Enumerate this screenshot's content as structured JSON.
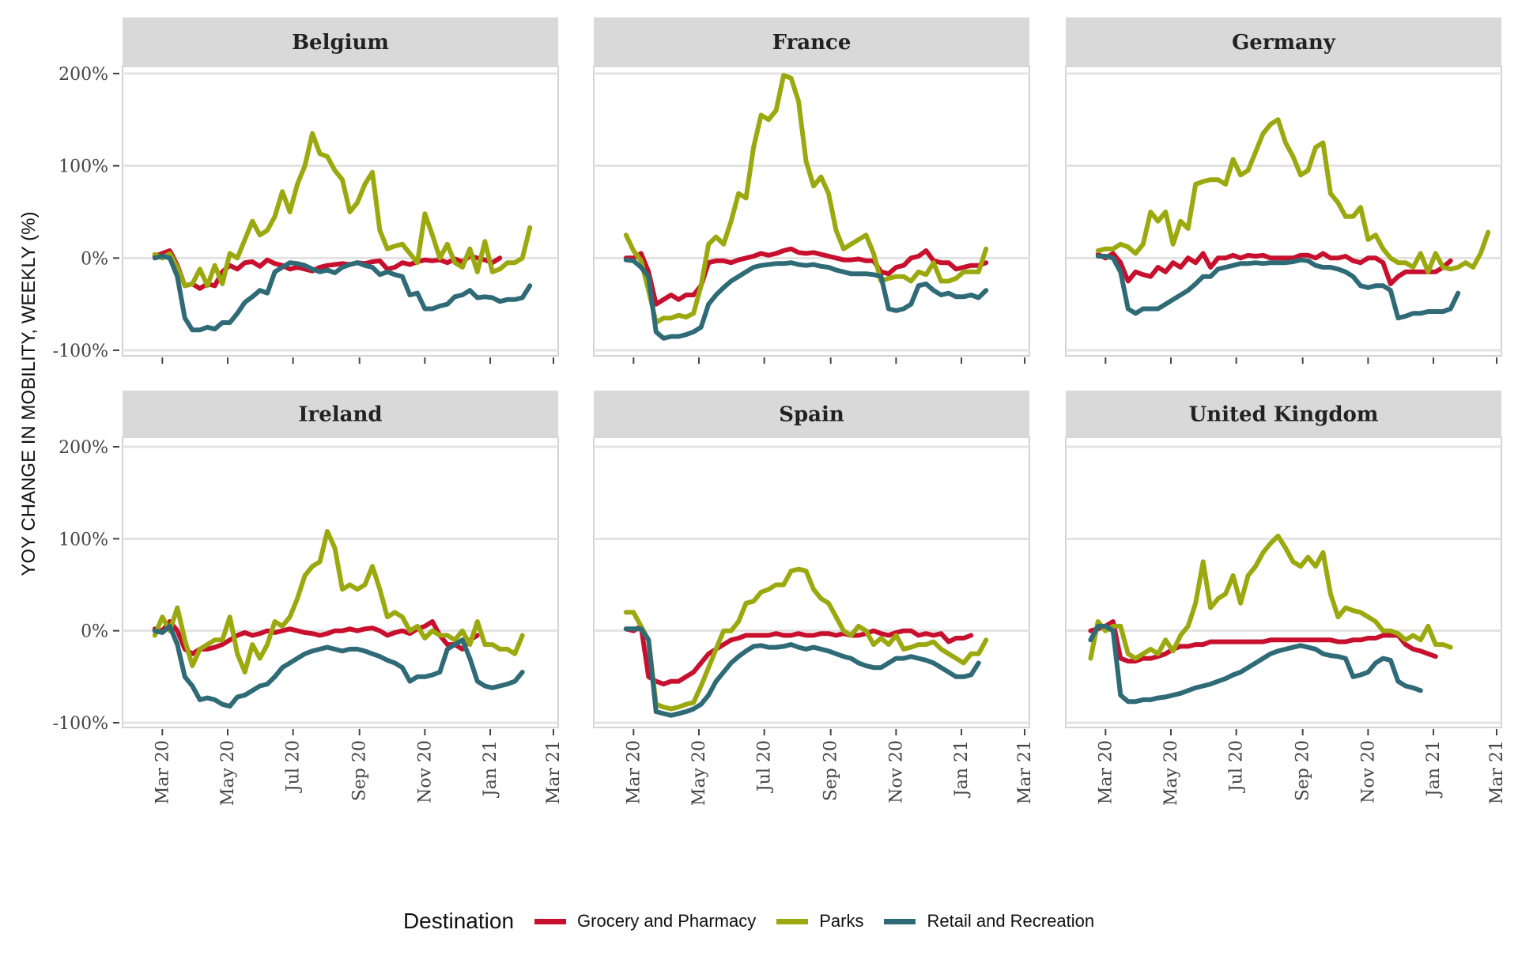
{
  "chart_data": {
    "type": "line",
    "ylabel": "YOY CHANGE IN MOBILITY, WEEKLY (%)",
    "ylim": [
      -100,
      200
    ],
    "yticks": [
      -100,
      0,
      100,
      200
    ],
    "ytick_labels": [
      "-100%",
      "0%",
      "100%",
      "200%"
    ],
    "x_range": [
      "2020-02-15",
      "2021-03-01"
    ],
    "xticks": [
      "2020-03-01",
      "2020-05-01",
      "2020-07-01",
      "2020-09-01",
      "2020-11-01",
      "2021-01-01",
      "2021-03-01"
    ],
    "xtick_labels": [
      "Mar 20",
      "May 20",
      "Jul 20",
      "Sep 20",
      "Nov 20",
      "Jan 21",
      "Mar 21"
    ],
    "grid": true,
    "legend": {
      "title": "Destination",
      "position": "bottom",
      "entries": [
        "Grocery and Pharmacy",
        "Parks",
        "Retail and Recreation"
      ]
    },
    "colors": {
      "Grocery and Pharmacy": "#C8102E",
      "Parks": "#9BA90E",
      "Retail and Recreation": "#2E6B77"
    },
    "series_names": [
      "Grocery and Pharmacy",
      "Parks",
      "Retail and Recreation"
    ],
    "panels": [
      {
        "name": "Belgium",
        "start": "2020-02-23",
        "series": {
          "Grocery and Pharmacy": [
            2,
            5,
            8,
            -8,
            -30,
            -28,
            -33,
            -28,
            -30,
            -15,
            -8,
            -12,
            -5,
            -4,
            -9,
            -2,
            -6,
            -8,
            -12,
            -10,
            -12,
            -14,
            -10,
            -8,
            -7,
            -6,
            -7,
            -5,
            -6,
            -4,
            -3,
            -12,
            -10,
            -5,
            -7,
            -4,
            -2,
            -3,
            -2,
            -5,
            -1,
            -4,
            2,
            0,
            -2,
            -5,
            0
          ],
          "Parks": [
            4,
            0,
            5,
            -10,
            -30,
            -28,
            -12,
            -30,
            -8,
            -28,
            5,
            0,
            20,
            40,
            25,
            30,
            45,
            72,
            50,
            80,
            100,
            135,
            113,
            110,
            95,
            85,
            50,
            60,
            80,
            93,
            30,
            10,
            13,
            15,
            5,
            -5,
            48,
            25,
            0,
            15,
            -5,
            -10,
            10,
            -15,
            18,
            -15,
            -12,
            -5,
            -5,
            0,
            33
          ],
          "Retail and Recreation": [
            0,
            2,
            0,
            -20,
            -65,
            -78,
            -78,
            -75,
            -77,
            -70,
            -70,
            -60,
            -48,
            -42,
            -35,
            -38,
            -15,
            -10,
            -5,
            -6,
            -8,
            -12,
            -15,
            -13,
            -16,
            -10,
            -7,
            -5,
            -8,
            -10,
            -18,
            -15,
            -18,
            -20,
            -40,
            -38,
            -55,
            -55,
            -52,
            -50,
            -42,
            -40,
            -35,
            -43,
            -42,
            -43,
            -47,
            -45,
            -45,
            -43,
            -30
          ]
        }
      },
      {
        "name": "France",
        "start": "2020-02-23",
        "series": {
          "Grocery and Pharmacy": [
            0,
            0,
            5,
            -15,
            -50,
            -45,
            -40,
            -45,
            -40,
            -40,
            -30,
            -5,
            -3,
            -3,
            -5,
            -2,
            0,
            2,
            5,
            3,
            5,
            8,
            10,
            6,
            5,
            6,
            4,
            2,
            0,
            -2,
            -2,
            -1,
            -3,
            -3,
            -15,
            -17,
            -10,
            -8,
            0,
            2,
            8,
            -3,
            -5,
            -5,
            -12,
            -10,
            -8,
            -8,
            -5
          ],
          "Parks": [
            25,
            8,
            -3,
            -35,
            -70,
            -65,
            -65,
            -62,
            -64,
            -60,
            -30,
            15,
            23,
            15,
            40,
            70,
            65,
            120,
            155,
            150,
            160,
            198,
            195,
            170,
            105,
            78,
            88,
            70,
            30,
            10,
            15,
            20,
            25,
            5,
            -25,
            -22,
            -20,
            -20,
            -25,
            -15,
            -18,
            -5,
            -25,
            -25,
            -22,
            -15,
            -15,
            -15,
            10
          ],
          "Retail and Recreation": [
            -2,
            -3,
            -10,
            -20,
            -80,
            -87,
            -85,
            -85,
            -83,
            -80,
            -75,
            -50,
            -40,
            -32,
            -25,
            -20,
            -15,
            -10,
            -8,
            -7,
            -6,
            -6,
            -5,
            -7,
            -8,
            -7,
            -9,
            -10,
            -13,
            -15,
            -17,
            -17,
            -17,
            -18,
            -20,
            -55,
            -57,
            -55,
            -50,
            -30,
            -28,
            -35,
            -40,
            -38,
            -42,
            -42,
            -40,
            -43,
            -35
          ]
        }
      },
      {
        "name": "Germany",
        "start": "2020-02-23",
        "series": {
          "Grocery and Pharmacy": [
            4,
            0,
            5,
            -5,
            -25,
            -15,
            -18,
            -20,
            -10,
            -15,
            -5,
            -10,
            0,
            -5,
            5,
            -10,
            0,
            0,
            3,
            0,
            3,
            2,
            3,
            0,
            0,
            0,
            0,
            3,
            3,
            0,
            5,
            0,
            0,
            2,
            -3,
            -5,
            0,
            0,
            -5,
            -28,
            -20,
            -15,
            -15,
            -15,
            -15,
            -15,
            -10,
            -3
          ],
          "Parks": [
            8,
            10,
            10,
            15,
            12,
            5,
            15,
            50,
            40,
            50,
            15,
            40,
            32,
            80,
            83,
            85,
            85,
            80,
            107,
            90,
            95,
            115,
            135,
            145,
            150,
            125,
            110,
            90,
            95,
            120,
            125,
            70,
            60,
            45,
            45,
            55,
            20,
            25,
            10,
            0,
            -5,
            -5,
            -10,
            5,
            -15,
            5,
            -10,
            -12,
            -10,
            -5,
            -10,
            5,
            28
          ],
          "Retail and Recreation": [
            2,
            2,
            0,
            -15,
            -55,
            -60,
            -55,
            -55,
            -55,
            -50,
            -45,
            -40,
            -35,
            -28,
            -20,
            -20,
            -12,
            -10,
            -8,
            -6,
            -6,
            -5,
            -6,
            -5,
            -5,
            -5,
            -4,
            -2,
            -3,
            -8,
            -10,
            -10,
            -12,
            -15,
            -20,
            -30,
            -32,
            -30,
            -30,
            -35,
            -65,
            -63,
            -60,
            -60,
            -58,
            -58,
            -58,
            -55,
            -38
          ]
        }
      },
      {
        "name": "Ireland",
        "start": "2020-02-23",
        "series": {
          "Grocery and Pharmacy": [
            2,
            0,
            10,
            0,
            -20,
            -25,
            -20,
            -20,
            -18,
            -15,
            -10,
            -5,
            -2,
            -5,
            -3,
            0,
            -2,
            0,
            2,
            0,
            -2,
            -3,
            -5,
            -3,
            0,
            0,
            2,
            0,
            2,
            3,
            0,
            -5,
            -2,
            0,
            -3,
            2,
            5,
            10,
            -5,
            -15,
            -15,
            -20,
            -10,
            -5
          ],
          "Parks": [
            -5,
            15,
            0,
            25,
            -10,
            -38,
            -20,
            -15,
            -10,
            -10,
            15,
            -25,
            -45,
            -15,
            -30,
            -15,
            10,
            5,
            15,
            35,
            60,
            70,
            75,
            108,
            90,
            45,
            50,
            45,
            50,
            70,
            45,
            15,
            20,
            15,
            0,
            5,
            -8,
            0,
            -5,
            -5,
            -10,
            0,
            -15,
            10,
            -15,
            -15,
            -20,
            -20,
            -25,
            -5
          ],
          "Retail and Recreation": [
            0,
            -2,
            5,
            -15,
            -50,
            -60,
            -75,
            -73,
            -75,
            -80,
            -82,
            -72,
            -70,
            -65,
            -60,
            -58,
            -50,
            -40,
            -35,
            -30,
            -25,
            -22,
            -20,
            -18,
            -20,
            -22,
            -20,
            -20,
            -22,
            -25,
            -28,
            -32,
            -35,
            -40,
            -55,
            -50,
            -50,
            -48,
            -45,
            -20,
            -15,
            -10,
            -30,
            -55,
            -60,
            -62,
            -60,
            -58,
            -55,
            -45
          ]
        }
      },
      {
        "name": "Spain",
        "start": "2020-02-23",
        "series": {
          "Grocery and Pharmacy": [
            2,
            0,
            5,
            -50,
            -55,
            -58,
            -55,
            -55,
            -50,
            -45,
            -35,
            -25,
            -20,
            -15,
            -10,
            -8,
            -5,
            -5,
            -5,
            -5,
            -3,
            -5,
            -5,
            -3,
            -5,
            -5,
            -3,
            -3,
            -5,
            -3,
            -5,
            -5,
            -3,
            0,
            -3,
            -5,
            -2,
            0,
            0,
            -5,
            -3,
            -5,
            -3,
            -12,
            -8,
            -8,
            -5
          ],
          "Parks": [
            20,
            20,
            5,
            -10,
            -80,
            -83,
            -85,
            -83,
            -80,
            -78,
            -60,
            -40,
            -20,
            0,
            0,
            10,
            30,
            32,
            42,
            45,
            50,
            50,
            65,
            67,
            65,
            45,
            35,
            30,
            15,
            0,
            -5,
            5,
            0,
            -15,
            -8,
            -15,
            -5,
            -20,
            -18,
            -15,
            -15,
            -12,
            -20,
            -25,
            -30,
            -35,
            -25,
            -25,
            -10
          ],
          "Retail and Recreation": [
            2,
            2,
            2,
            -10,
            -88,
            -90,
            -92,
            -90,
            -88,
            -85,
            -80,
            -70,
            -55,
            -45,
            -35,
            -28,
            -22,
            -17,
            -16,
            -18,
            -18,
            -17,
            -15,
            -18,
            -20,
            -18,
            -20,
            -22,
            -25,
            -28,
            -30,
            -35,
            -38,
            -40,
            -40,
            -35,
            -30,
            -30,
            -28,
            -30,
            -32,
            -35,
            -40,
            -45,
            -50,
            -50,
            -48,
            -35
          ]
        }
      },
      {
        "name": "United Kingdom",
        "start": "2020-02-16",
        "series": {
          "Grocery and Pharmacy": [
            0,
            2,
            5,
            10,
            -30,
            -33,
            -33,
            -30,
            -30,
            -28,
            -25,
            -20,
            -17,
            -17,
            -15,
            -15,
            -12,
            -12,
            -12,
            -12,
            -12,
            -12,
            -12,
            -12,
            -10,
            -10,
            -10,
            -10,
            -10,
            -10,
            -10,
            -10,
            -10,
            -12,
            -12,
            -10,
            -10,
            -8,
            -8,
            -5,
            -5,
            -5,
            -15,
            -20,
            -22,
            -25,
            -28
          ],
          "Parks": [
            -30,
            10,
            0,
            5,
            5,
            -25,
            -30,
            -25,
            -20,
            -25,
            -10,
            -22,
            -5,
            5,
            30,
            75,
            25,
            35,
            40,
            60,
            30,
            60,
            70,
            85,
            95,
            103,
            90,
            75,
            70,
            80,
            70,
            85,
            40,
            15,
            25,
            22,
            20,
            15,
            10,
            0,
            0,
            -3,
            -10,
            -5,
            -10,
            5,
            -15,
            -15,
            -18
          ],
          "Retail and Recreation": [
            -10,
            5,
            5,
            0,
            -70,
            -77,
            -77,
            -75,
            -75,
            -73,
            -72,
            -70,
            -68,
            -65,
            -62,
            -60,
            -58,
            -55,
            -52,
            -48,
            -45,
            -40,
            -35,
            -30,
            -25,
            -22,
            -20,
            -18,
            -16,
            -18,
            -20,
            -25,
            -27,
            -28,
            -30,
            -50,
            -48,
            -45,
            -35,
            -30,
            -32,
            -55,
            -60,
            -62,
            -65
          ]
        }
      }
    ]
  }
}
